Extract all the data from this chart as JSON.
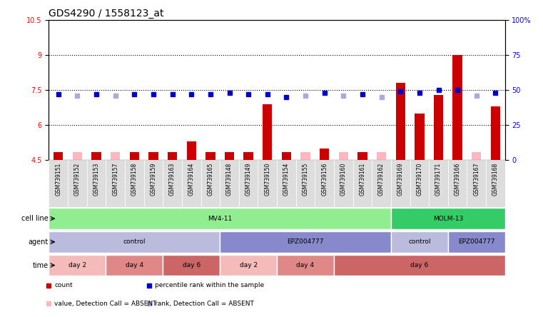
{
  "title": "GDS4290 / 1558123_at",
  "samples": [
    "GSM739151",
    "GSM739152",
    "GSM739153",
    "GSM739157",
    "GSM739158",
    "GSM739159",
    "GSM739163",
    "GSM739164",
    "GSM739165",
    "GSM739148",
    "GSM739149",
    "GSM739150",
    "GSM739154",
    "GSM739155",
    "GSM739156",
    "GSM739160",
    "GSM739161",
    "GSM739162",
    "GSM739169",
    "GSM739170",
    "GSM739171",
    "GSM739166",
    "GSM739167",
    "GSM739168"
  ],
  "count_values": [
    4.85,
    4.85,
    4.85,
    4.85,
    4.85,
    4.85,
    4.85,
    5.3,
    4.85,
    4.85,
    4.85,
    6.9,
    4.85,
    4.85,
    5.0,
    4.85,
    4.85,
    4.85,
    7.8,
    6.5,
    7.3,
    9.0,
    4.85,
    6.8
  ],
  "count_absent": [
    false,
    true,
    false,
    true,
    false,
    false,
    false,
    false,
    false,
    false,
    false,
    false,
    false,
    true,
    false,
    true,
    false,
    true,
    false,
    false,
    false,
    false,
    true,
    false
  ],
  "rank_values": [
    47,
    46,
    47,
    46,
    47,
    47,
    47,
    47,
    47,
    48,
    47,
    47,
    45,
    46,
    48,
    46,
    47,
    45,
    49,
    48,
    50,
    50,
    46,
    48
  ],
  "rank_absent": [
    false,
    true,
    false,
    true,
    false,
    false,
    false,
    false,
    false,
    false,
    false,
    false,
    false,
    true,
    false,
    true,
    false,
    true,
    false,
    false,
    false,
    false,
    true,
    false
  ],
  "ylim_left": [
    4.5,
    10.5
  ],
  "ylim_right": [
    0,
    100
  ],
  "yticks_left": [
    4.5,
    6.0,
    7.5,
    9.0,
    10.5
  ],
  "yticks_right": [
    0,
    25,
    50,
    75,
    100
  ],
  "grid_lines": [
    9.0,
    7.5,
    6.0
  ],
  "cell_line_groups": [
    {
      "label": "MV4-11",
      "start": 0,
      "end": 18,
      "color": "#90EE90"
    },
    {
      "label": "MOLM-13",
      "start": 18,
      "end": 24,
      "color": "#33CC66"
    }
  ],
  "agent_groups": [
    {
      "label": "control",
      "start": 0,
      "end": 9,
      "color": "#BBBBDD"
    },
    {
      "label": "EPZ004777",
      "start": 9,
      "end": 18,
      "color": "#8888CC"
    },
    {
      "label": "control",
      "start": 18,
      "end": 21,
      "color": "#BBBBDD"
    },
    {
      "label": "EPZ004777",
      "start": 21,
      "end": 24,
      "color": "#8888CC"
    }
  ],
  "time_groups": [
    {
      "label": "day 2",
      "start": 0,
      "end": 3,
      "color": "#F5BBBB"
    },
    {
      "label": "day 4",
      "start": 3,
      "end": 6,
      "color": "#E08888"
    },
    {
      "label": "day 6",
      "start": 6,
      "end": 9,
      "color": "#CC6666"
    },
    {
      "label": "day 2",
      "start": 9,
      "end": 12,
      "color": "#F5BBBB"
    },
    {
      "label": "day 4",
      "start": 12,
      "end": 15,
      "color": "#E08888"
    },
    {
      "label": "day 6",
      "start": 15,
      "end": 24,
      "color": "#CC6666"
    }
  ],
  "legend_items": [
    {
      "label": "count",
      "color": "#CC0000"
    },
    {
      "label": "percentile rank within the sample",
      "color": "#0000CC"
    },
    {
      "label": "value, Detection Call = ABSENT",
      "color": "#FFB6C1"
    },
    {
      "label": "rank, Detection Call = ABSENT",
      "color": "#AAAADD"
    }
  ],
  "bar_color_present": "#CC0000",
  "bar_color_absent": "#FFB6C1",
  "rank_color_present": "#0000CC",
  "rank_color_absent": "#AAAADD",
  "bg_color": "#FFFFFF",
  "title_fontsize": 10,
  "tick_fontsize": 7,
  "sample_fontsize": 5.5
}
